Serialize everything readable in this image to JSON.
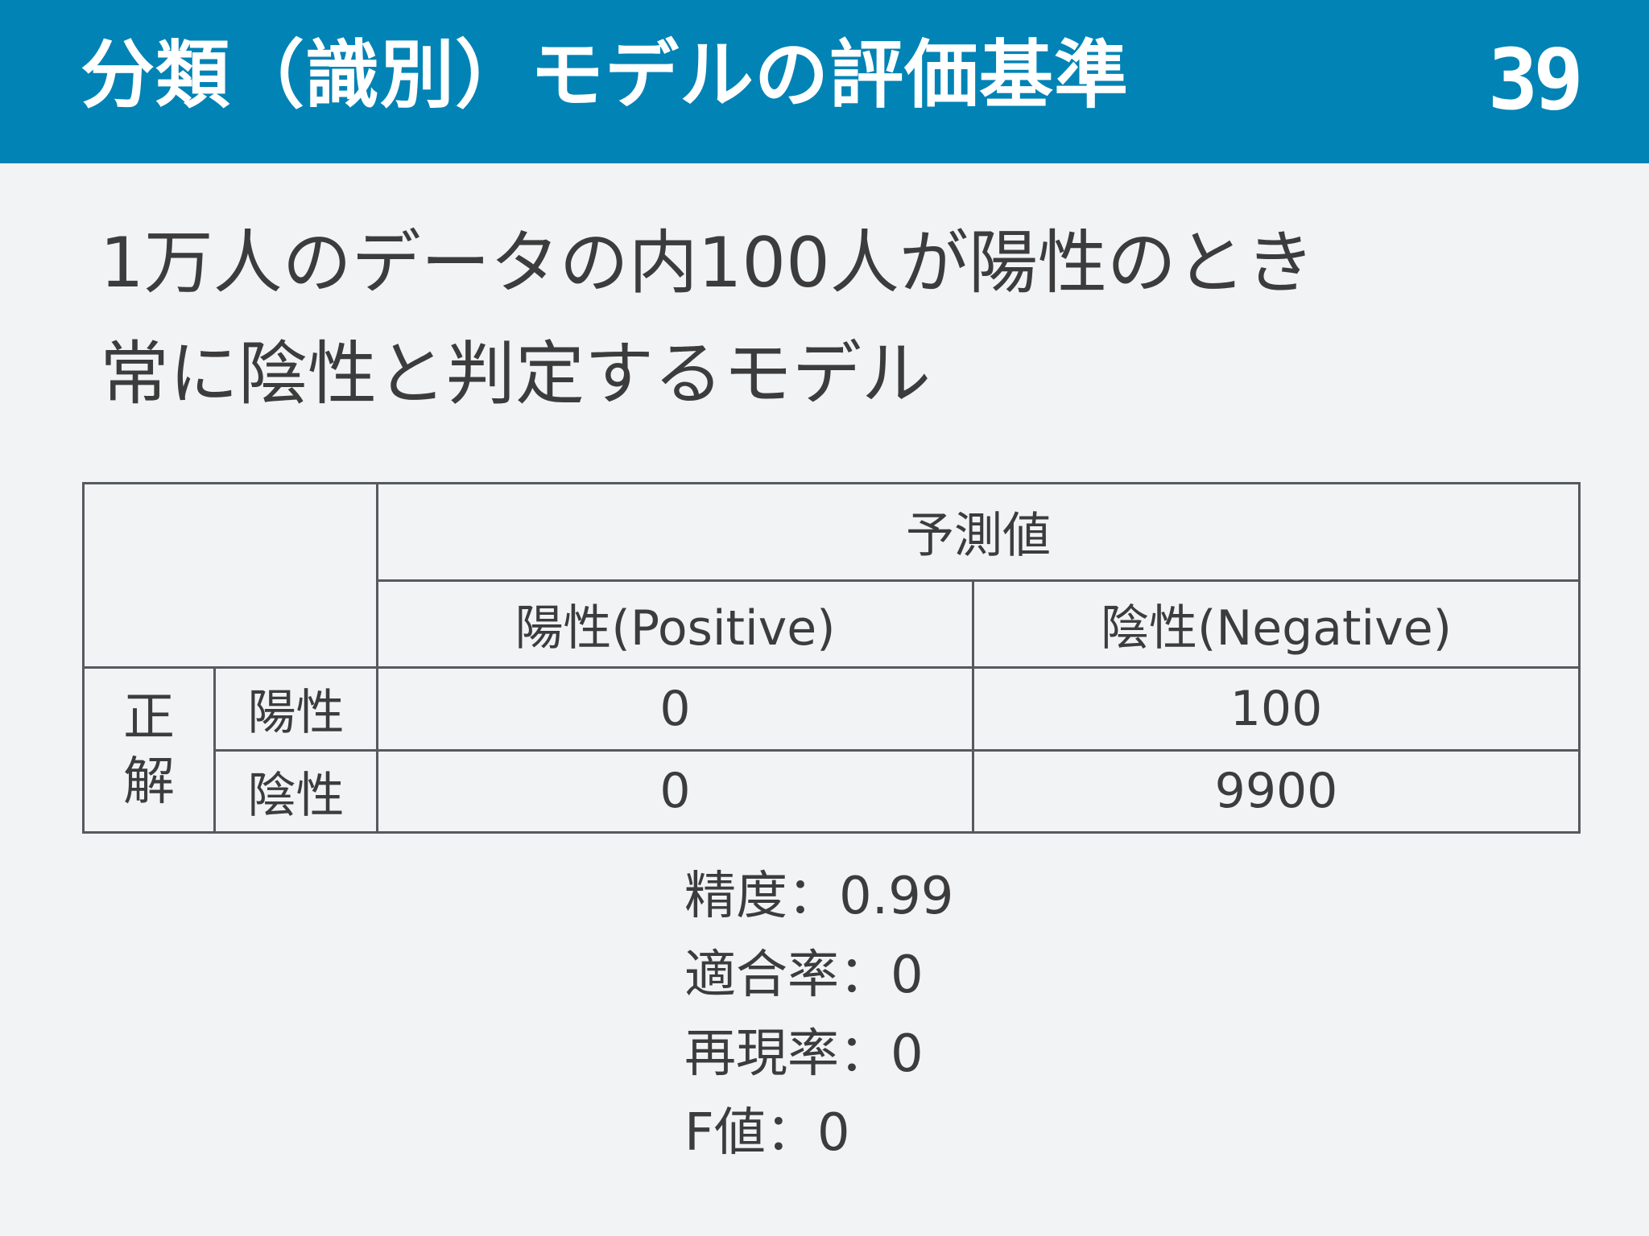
{
  "header": {
    "title": "分類（識別）モデルの評価基準",
    "page_number": "39"
  },
  "lead": {
    "line1": "1万人のデータの内100人が陽性のとき",
    "line2": "常に陰性と判定するモデル"
  },
  "table": {
    "predicted_header": "予測値",
    "pred_positive": "陽性(Positive)",
    "pred_negative": "陰性(Negative)",
    "truth_label_1": "正",
    "truth_label_2": "解",
    "rows": [
      {
        "label": "陽性",
        "positive": "0",
        "negative": "100"
      },
      {
        "label": "陰性",
        "positive": "0",
        "negative": "9900"
      }
    ]
  },
  "metrics": [
    {
      "name": "精度",
      "sep": "：",
      "value": "0.99"
    },
    {
      "name": "適合率",
      "sep": "：",
      "value": "0"
    },
    {
      "name": "再現率",
      "sep": "：",
      "value": "0"
    },
    {
      "name": "F値",
      "sep": "：",
      "value": "0"
    }
  ]
}
